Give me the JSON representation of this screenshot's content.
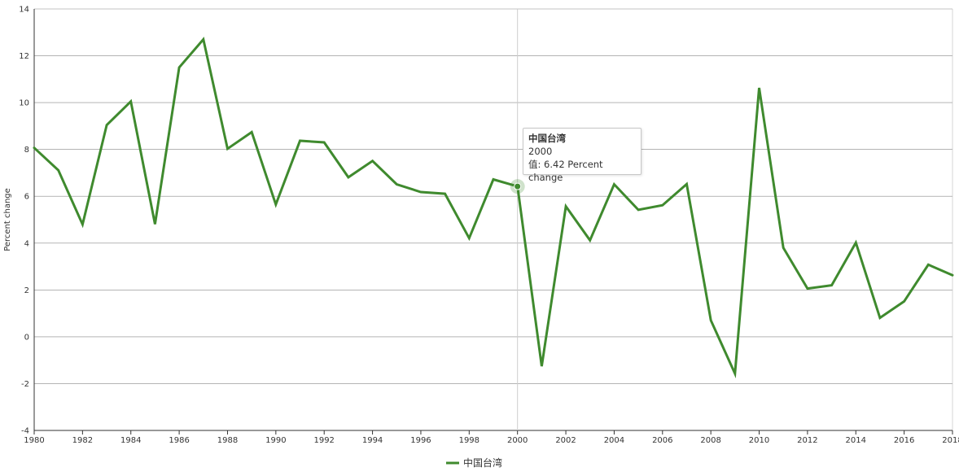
{
  "chart_data": {
    "type": "line",
    "ylabel": "Percent change",
    "xlabel": "",
    "ylim": [
      -4,
      14
    ],
    "yticks": [
      -4,
      -2,
      0,
      2,
      4,
      6,
      8,
      10,
      12,
      14
    ],
    "xlim": [
      1980,
      2018
    ],
    "xticks": [
      1980,
      1982,
      1984,
      1986,
      1988,
      1990,
      1992,
      1994,
      1996,
      1998,
      2000,
      2002,
      2004,
      2006,
      2008,
      2010,
      2012,
      2014,
      2016,
      2018
    ],
    "grid": true,
    "legend_position": "bottom-center",
    "series": [
      {
        "name": "中国台湾",
        "color": "#3f8a2e",
        "x": [
          1980,
          1981,
          1982,
          1983,
          1984,
          1985,
          1986,
          1987,
          1988,
          1989,
          1990,
          1991,
          1992,
          1993,
          1994,
          1995,
          1996,
          1997,
          1998,
          1999,
          2000,
          2001,
          2002,
          2003,
          2004,
          2005,
          2006,
          2007,
          2008,
          2009,
          2010,
          2011,
          2012,
          2013,
          2014,
          2015,
          2016,
          2017,
          2018
        ],
        "values": [
          8.07,
          7.11,
          4.8,
          9.04,
          10.05,
          4.81,
          11.5,
          12.7,
          8.03,
          8.74,
          5.65,
          8.37,
          8.3,
          6.81,
          7.51,
          6.51,
          6.18,
          6.11,
          4.21,
          6.72,
          6.42,
          -1.26,
          5.57,
          4.12,
          6.51,
          5.42,
          5.62,
          6.52,
          0.7,
          -1.57,
          10.63,
          3.8,
          2.06,
          2.2,
          4.02,
          0.81,
          1.51,
          3.08,
          2.63
        ]
      }
    ],
    "tooltip": {
      "series": "中国台湾",
      "x": "2000",
      "value_text": "值: 6.42 Percent change",
      "highlight_index": 20
    }
  }
}
